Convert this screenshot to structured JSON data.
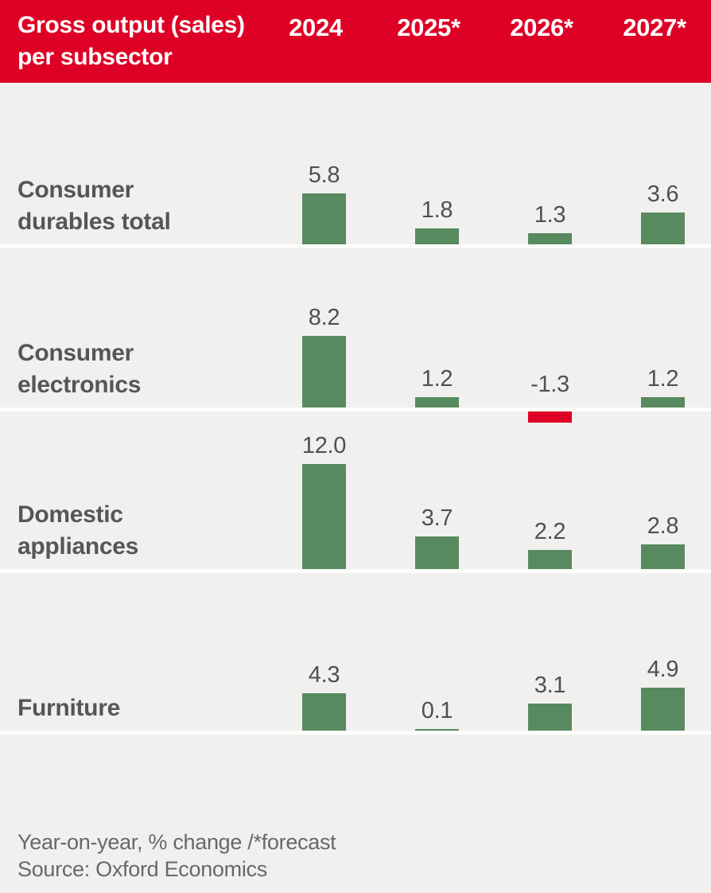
{
  "header": {
    "title_lines": [
      "Gross output (sales)",
      "per subsector"
    ],
    "columns": [
      "2024",
      "2025*",
      "2026*",
      "2027*"
    ]
  },
  "rows": [
    {
      "label_lines": [
        "Consumer",
        "durables total"
      ],
      "display_values": [
        "5.8",
        "1.8",
        "1.3",
        "3.6"
      ]
    },
    {
      "label_lines": [
        "Consumer",
        "electronics"
      ],
      "display_values": [
        "8.2",
        "1.2",
        "-1.3",
        "1.2"
      ]
    },
    {
      "label_lines": [
        "Domestic",
        "appliances"
      ],
      "display_values": [
        "12.0",
        "3.7",
        "2.2",
        "2.8"
      ]
    },
    {
      "label_lines": [
        "Furniture"
      ],
      "display_values": [
        "4.3",
        "0.1",
        "3.1",
        "4.9"
      ]
    }
  ],
  "chart_data": {
    "type": "bar",
    "title": "Gross output (sales) per subsector",
    "categories": [
      "2024",
      "2025*",
      "2026*",
      "2027*"
    ],
    "series": [
      {
        "name": "Consumer durables total",
        "values": [
          5.8,
          1.8,
          1.3,
          3.6
        ]
      },
      {
        "name": "Consumer electronics",
        "values": [
          8.2,
          1.2,
          -1.3,
          1.2
        ]
      },
      {
        "name": "Domestic appliances",
        "values": [
          12.0,
          3.7,
          2.2,
          2.8
        ]
      },
      {
        "name": "Furniture",
        "values": [
          4.3,
          0.1,
          3.1,
          4.9
        ]
      }
    ],
    "value_unit": "% change year-on-year",
    "note": "Year-on-year, % change /*forecast",
    "source": "Source: Oxford Economics",
    "grid": false,
    "legend_position": "none",
    "layout": "small-multiples by row, bars grow up from per-row baseline, negatives hang below baseline",
    "colors": {
      "positive_bar": "#588a60",
      "negative_bar": "#de0025",
      "header_background": "#de0025",
      "header_text": "#ffffff",
      "background": "#f1f0ee",
      "label_text": "#55565a",
      "footer_text": "#67686c",
      "separator": "#fcfcfb"
    }
  },
  "footer": {
    "note": "Year-on-year, % change /*forecast",
    "source": "Source: Oxford Economics"
  }
}
